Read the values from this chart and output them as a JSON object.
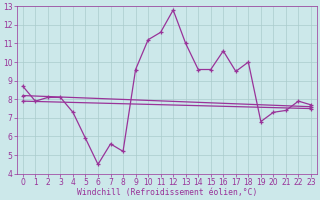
{
  "x": [
    0,
    1,
    2,
    3,
    4,
    5,
    6,
    7,
    8,
    9,
    10,
    11,
    12,
    13,
    14,
    15,
    16,
    17,
    18,
    19,
    20,
    21,
    22,
    23
  ],
  "line1": [
    8.7,
    7.9,
    8.1,
    8.1,
    7.3,
    5.9,
    4.5,
    5.6,
    5.2,
    9.6,
    11.2,
    11.6,
    12.8,
    11.0,
    9.6,
    9.6,
    10.6,
    9.5,
    10.0,
    6.8,
    7.3,
    7.4,
    7.9,
    7.7
  ],
  "line2_x": [
    0,
    23
  ],
  "line2_y": [
    8.2,
    7.6
  ],
  "line3_x": [
    0,
    23
  ],
  "line3_y": [
    7.9,
    7.5
  ],
  "bg_color": "#cce8ea",
  "grid_color": "#aacccc",
  "line_color": "#993399",
  "ylim": [
    4,
    13
  ],
  "xlim": [
    -0.5,
    23.5
  ],
  "xlabel": "Windchill (Refroidissement éolien,°C)",
  "yticks": [
    4,
    5,
    6,
    7,
    8,
    9,
    10,
    11,
    12,
    13
  ],
  "xticks": [
    0,
    1,
    2,
    3,
    4,
    5,
    6,
    7,
    8,
    9,
    10,
    11,
    12,
    13,
    14,
    15,
    16,
    17,
    18,
    19,
    20,
    21,
    22,
    23
  ],
  "xlabel_fontsize": 5.8,
  "tick_fontsize": 5.5,
  "lw": 0.9,
  "ms": 3.0
}
